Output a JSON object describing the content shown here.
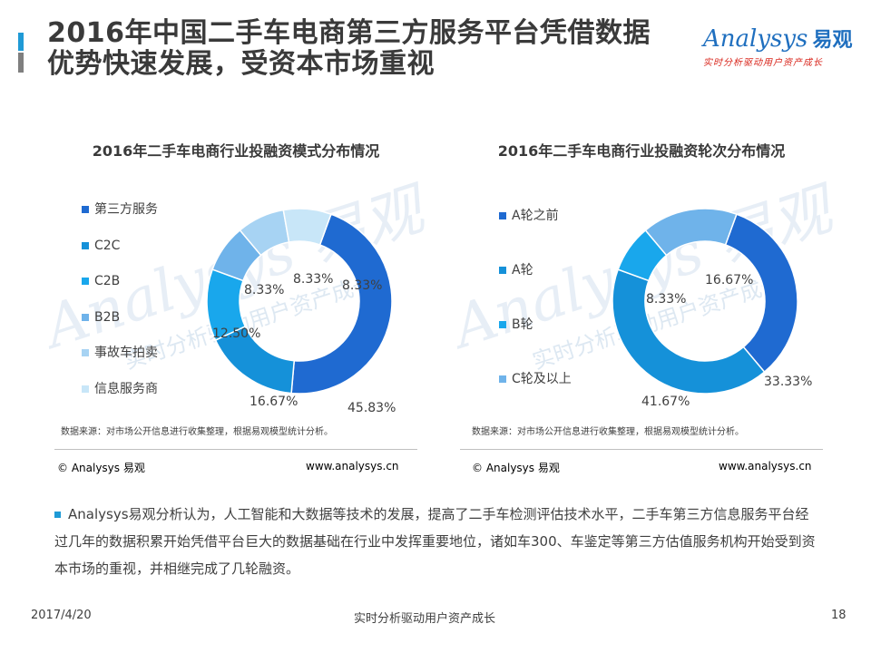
{
  "header": {
    "title_line1": "2016年中国二手车电商第三方服务平台凭借数据",
    "title_line2": "优势快速发展，受资本市场重视"
  },
  "logo": {
    "word": "Analysys",
    "cn": "易观",
    "slogan": "实时分析驱动用户资产成长"
  },
  "watermark": {
    "word": "Analysys 易观",
    "slogan": "实时分析驱动用户资产成长"
  },
  "colors": {
    "accent_top": "#1f9ad6",
    "accent_bottom": "#7f7f7f"
  },
  "chart_data": [
    {
      "type": "pie",
      "title": "2016年二手车电商行业投融资模式分布情况",
      "categories": [
        "第三方服务",
        "C2C",
        "C2B",
        "B2B",
        "事故车拍卖",
        "信息服务商"
      ],
      "values": [
        45.83,
        16.67,
        12.5,
        8.33,
        8.33,
        8.33
      ],
      "labels": [
        "45.83%",
        "16.67%",
        "12.50%",
        "8.33%",
        "8.33%",
        "8.33%"
      ],
      "colors": [
        "#1f6ad1",
        "#1591d9",
        "#19a7ec",
        "#6fb3ea",
        "#a7d3f3",
        "#c8e6f8"
      ],
      "legend": "left",
      "source": "数据来源：对市场公开信息进行收集整理，根据易观模型统计分析。",
      "copyright": "© Analysys 易观",
      "url": "www.analysys.cn"
    },
    {
      "type": "pie",
      "title": "2016年二手车电商行业投融资轮次分布情况",
      "categories": [
        "A轮之前",
        "A轮",
        "B轮",
        "C轮及以上"
      ],
      "values": [
        33.33,
        41.67,
        8.33,
        16.67
      ],
      "labels": [
        "33.33%",
        "41.67%",
        "8.33%",
        "16.67%"
      ],
      "colors": [
        "#1f6ad1",
        "#1591d9",
        "#19a7ec",
        "#6fb3ea"
      ],
      "legend": "left",
      "source": "数据来源：对市场公开信息进行收集整理，根据易观模型统计分析。",
      "copyright": "© Analysys 易观",
      "url": "www.analysys.cn"
    }
  ],
  "bullet": {
    "text": "Analysys易观分析认为，人工智能和大数据等技术的发展，提高了二手车检测评估技术水平，二手车第三方信息服务平台经过几年的数据积累开始凭借平台巨大的数据基础在行业中发挥重要地位，诸如车300、车鉴定等第三方估值服务机构开始受到资本市场的重视，并相继完成了几轮融资。"
  },
  "footer": {
    "date": "2017/4/20",
    "slogan": "实时分析驱动用户资产成长",
    "page": "18"
  }
}
